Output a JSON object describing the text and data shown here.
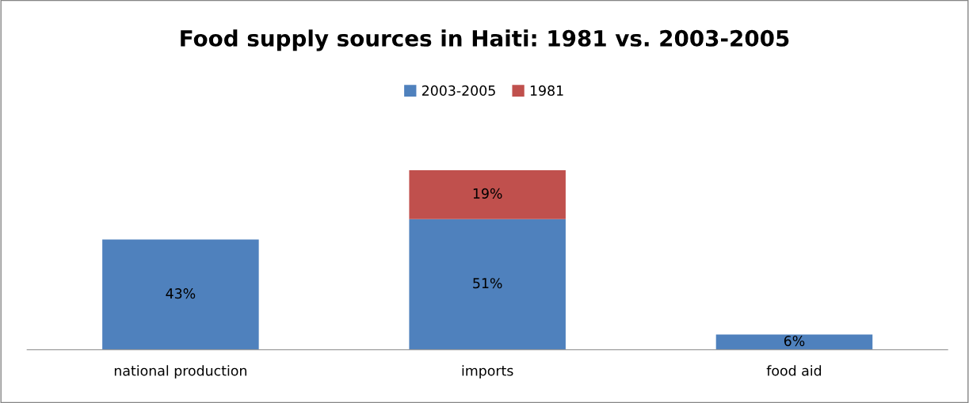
{
  "chart_data": {
    "type": "bar",
    "title": "Food supply sources in Haiti: 1981 vs. 2003-2005",
    "categories": [
      "national production",
      "imports",
      "food aid"
    ],
    "stacked": true,
    "legend": "top",
    "grid": false,
    "series": [
      {
        "name": "2003-2005",
        "color": "#4f81bd",
        "values": [
          43,
          51,
          6
        ],
        "value_labels": [
          "43%",
          "51%",
          "6%"
        ]
      },
      {
        "name": "1981",
        "color": "#c0504d",
        "values": [
          null,
          19,
          null
        ],
        "value_labels": [
          null,
          "19%",
          null
        ]
      }
    ]
  }
}
